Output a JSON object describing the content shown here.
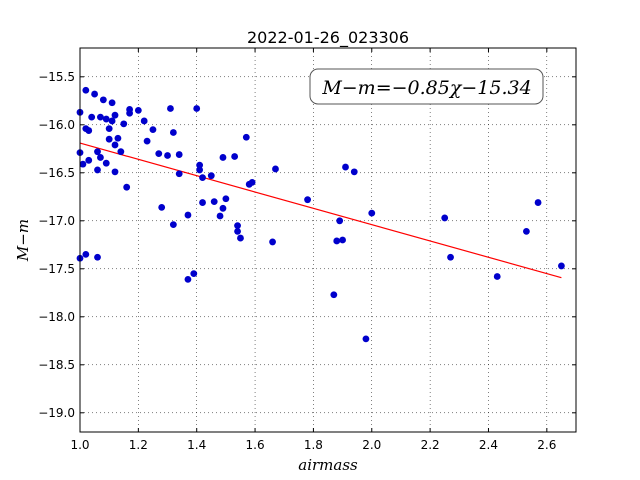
{
  "chart_data": {
    "type": "scatter",
    "title": "2022-01-26_023306",
    "xlabel": "airmass",
    "ylabel": "M−m",
    "annotation": "M−m=−0.85χ−15.34",
    "xlim": [
      1.0,
      2.7
    ],
    "ylim": [
      -15.2,
      -19.2
    ],
    "y_inverted": true,
    "grid": true,
    "xticks": [
      1.0,
      1.2,
      1.4,
      1.6,
      1.8,
      2.0,
      2.2,
      2.4,
      2.6
    ],
    "xtick_labels": [
      "1.0",
      "1.2",
      "1.4",
      "1.6",
      "1.8",
      "2.0",
      "2.2",
      "2.4",
      "2.6"
    ],
    "yticks": [
      -15.5,
      -16.0,
      -16.5,
      -17.0,
      -17.5,
      -18.0,
      -18.5,
      -19.0
    ],
    "ytick_labels": [
      "−15.5",
      "−16.0",
      "−16.5",
      "−17.0",
      "−17.5",
      "−18.0",
      "−18.5",
      "−19.0"
    ],
    "point_color": "#0000cc",
    "line_color": "#ff0000",
    "fit": {
      "slope": -0.85,
      "intercept": -15.34,
      "x_range": [
        1.0,
        2.65
      ]
    },
    "points": [
      [
        1.0,
        -15.87
      ],
      [
        1.0,
        -16.29
      ],
      [
        1.0,
        -17.39
      ],
      [
        1.01,
        -16.41
      ],
      [
        1.02,
        -15.64
      ],
      [
        1.02,
        -16.04
      ],
      [
        1.03,
        -16.06
      ],
      [
        1.03,
        -16.37
      ],
      [
        1.02,
        -17.35
      ],
      [
        1.04,
        -15.92
      ],
      [
        1.05,
        -15.68
      ],
      [
        1.06,
        -16.28
      ],
      [
        1.06,
        -16.47
      ],
      [
        1.06,
        -17.38
      ],
      [
        1.07,
        -15.92
      ],
      [
        1.07,
        -16.34
      ],
      [
        1.08,
        -15.74
      ],
      [
        1.09,
        -16.4
      ],
      [
        1.09,
        -15.94
      ],
      [
        1.1,
        -16.04
      ],
      [
        1.1,
        -16.15
      ],
      [
        1.11,
        -15.77
      ],
      [
        1.11,
        -15.96
      ],
      [
        1.12,
        -16.21
      ],
      [
        1.12,
        -16.49
      ],
      [
        1.12,
        -15.9
      ],
      [
        1.13,
        -16.14
      ],
      [
        1.14,
        -16.28
      ],
      [
        1.15,
        -15.99
      ],
      [
        1.16,
        -16.65
      ],
      [
        1.17,
        -15.88
      ],
      [
        1.17,
        -15.84
      ],
      [
        1.2,
        -15.85
      ],
      [
        1.22,
        -15.96
      ],
      [
        1.23,
        -16.17
      ],
      [
        1.25,
        -16.05
      ],
      [
        1.27,
        -16.3
      ],
      [
        1.28,
        -16.86
      ],
      [
        1.3,
        -16.32
      ],
      [
        1.31,
        -15.83
      ],
      [
        1.32,
        -16.08
      ],
      [
        1.32,
        -17.04
      ],
      [
        1.34,
        -16.31
      ],
      [
        1.34,
        -16.51
      ],
      [
        1.37,
        -17.61
      ],
      [
        1.37,
        -16.94
      ],
      [
        1.39,
        -17.55
      ],
      [
        1.4,
        -15.83
      ],
      [
        1.41,
        -16.42
      ],
      [
        1.41,
        -16.47
      ],
      [
        1.42,
        -16.81
      ],
      [
        1.42,
        -16.55
      ],
      [
        1.45,
        -16.53
      ],
      [
        1.46,
        -16.8
      ],
      [
        1.48,
        -16.95
      ],
      [
        1.49,
        -16.34
      ],
      [
        1.49,
        -16.87
      ],
      [
        1.5,
        -16.77
      ],
      [
        1.53,
        -16.33
      ],
      [
        1.54,
        -17.05
      ],
      [
        1.54,
        -17.11
      ],
      [
        1.55,
        -17.18
      ],
      [
        1.57,
        -16.13
      ],
      [
        1.58,
        -16.62
      ],
      [
        1.59,
        -16.6
      ],
      [
        1.66,
        -17.22
      ],
      [
        1.67,
        -16.46
      ],
      [
        1.78,
        -16.78
      ],
      [
        1.87,
        -17.77
      ],
      [
        1.88,
        -17.21
      ],
      [
        1.89,
        -17.0
      ],
      [
        1.9,
        -17.2
      ],
      [
        1.91,
        -16.44
      ],
      [
        1.94,
        -16.49
      ],
      [
        1.98,
        -18.23
      ],
      [
        2.0,
        -16.92
      ],
      [
        2.25,
        -16.97
      ],
      [
        2.27,
        -17.38
      ],
      [
        2.43,
        -17.58
      ],
      [
        2.53,
        -17.11
      ],
      [
        2.57,
        -16.81
      ],
      [
        2.65,
        -17.47
      ]
    ]
  }
}
